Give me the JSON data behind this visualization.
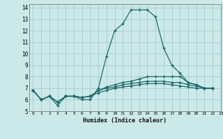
{
  "xlabel": "Humidex (Indice chaleur)",
  "background_color": "#cce9e9",
  "grid_color": "#aacfcf",
  "line_color": "#1a6b6b",
  "xlim": [
    -0.5,
    23
  ],
  "ylim": [
    5,
    14.3
  ],
  "yticks": [
    5,
    6,
    7,
    8,
    9,
    10,
    11,
    12,
    13,
    14
  ],
  "xticks": [
    0,
    1,
    2,
    3,
    4,
    5,
    6,
    7,
    8,
    9,
    10,
    11,
    12,
    13,
    14,
    15,
    16,
    17,
    18,
    19,
    20,
    21,
    22,
    23
  ],
  "series": [
    [
      6.8,
      6.0,
      6.3,
      5.5,
      6.3,
      6.3,
      6.0,
      6.0,
      7.0,
      9.8,
      12.0,
      12.6,
      13.8,
      13.8,
      13.8,
      13.2,
      10.5,
      9.0,
      8.3,
      7.5,
      7.3,
      7.0,
      7.0
    ],
    [
      6.8,
      6.0,
      6.3,
      5.8,
      6.3,
      6.3,
      6.2,
      6.3,
      6.8,
      7.1,
      7.3,
      7.5,
      7.6,
      7.8,
      8.0,
      8.0,
      8.0,
      8.0,
      8.0,
      7.5,
      7.3,
      7.0,
      7.0
    ],
    [
      6.8,
      6.0,
      6.3,
      5.8,
      6.3,
      6.3,
      6.2,
      6.3,
      6.8,
      7.0,
      7.1,
      7.3,
      7.4,
      7.5,
      7.6,
      7.6,
      7.6,
      7.5,
      7.5,
      7.3,
      7.2,
      7.0,
      7.0
    ],
    [
      6.8,
      6.0,
      6.3,
      5.8,
      6.3,
      6.3,
      6.2,
      6.3,
      6.6,
      6.8,
      7.0,
      7.1,
      7.2,
      7.3,
      7.4,
      7.4,
      7.4,
      7.3,
      7.2,
      7.1,
      7.0,
      7.0,
      7.0
    ]
  ]
}
